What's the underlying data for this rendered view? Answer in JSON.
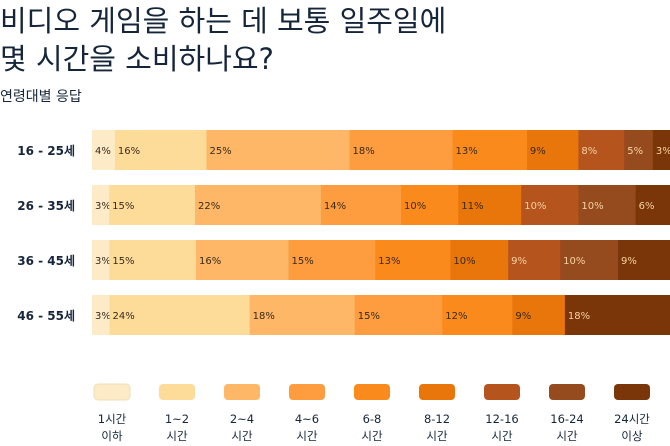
{
  "title": "비디오 게임을 하는 데 보통 일주일에\n몇 시간을 소비하나요?",
  "subtitle": "연령대별 응답",
  "chart_data": {
    "type": "bar",
    "orientation": "horizontal",
    "stacked": true,
    "normalized": true,
    "title": "비디오 게임을 하는 데 보통 일주일에 몇 시간을 소비하나요?",
    "subtitle": "연령대별 응답",
    "categories": [
      "16 - 25세",
      "26 - 35세",
      "36 - 45세",
      "46 - 55세"
    ],
    "series": [
      {
        "name": "1시간 이하",
        "legend_lines": [
          "1시간",
          "이하"
        ],
        "color": "#fdebc8",
        "values": [
          4,
          3,
          3,
          3
        ]
      },
      {
        "name": "1~2 시간",
        "legend_lines": [
          "1~2",
          "시간"
        ],
        "color": "#fddc9a",
        "values": [
          16,
          15,
          15,
          24
        ]
      },
      {
        "name": "2~4 시간",
        "legend_lines": [
          "2~4",
          "시간"
        ],
        "color": "#fdb766",
        "values": [
          25,
          22,
          16,
          18
        ]
      },
      {
        "name": "4~6 시간",
        "legend_lines": [
          "4~6",
          "시간"
        ],
        "color": "#fd9d40",
        "values": [
          18,
          14,
          15,
          15
        ]
      },
      {
        "name": "6-8 시간",
        "legend_lines": [
          "6-8",
          "시간"
        ],
        "color": "#fb8a1c",
        "values": [
          13,
          10,
          13,
          12
        ]
      },
      {
        "name": "8-12 시간",
        "legend_lines": [
          "8-12",
          "시간"
        ],
        "color": "#e8760a",
        "values": [
          9,
          11,
          10,
          9
        ]
      },
      {
        "name": "12-16 시간",
        "legend_lines": [
          "12-16",
          "시간"
        ],
        "color": "#b5541d",
        "values": [
          8,
          10,
          9,
          0
        ]
      },
      {
        "name": "16-24 시간",
        "legend_lines": [
          "16-24",
          "시간"
        ],
        "color": "#964b1e",
        "values": [
          5,
          10,
          10,
          0
        ]
      },
      {
        "name": "24시간 이상",
        "legend_lines": [
          "24시간",
          "이상"
        ],
        "color": "#7a3508",
        "values": [
          3,
          6,
          9,
          18
        ]
      }
    ],
    "value_suffix": "%",
    "legend_placement": "bottom",
    "grid": false
  }
}
